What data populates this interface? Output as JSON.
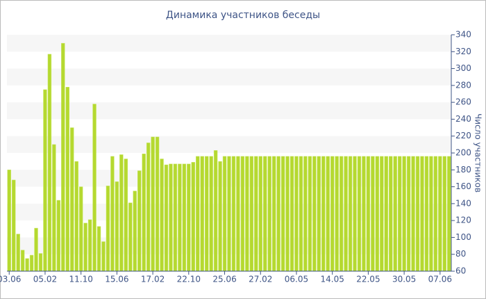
{
  "chart_data": {
    "type": "bar",
    "title": "Динамика участников беседы",
    "y_label": "Число участников",
    "categories": [
      "03.06",
      null,
      null,
      null,
      null,
      null,
      null,
      null,
      "05.02",
      null,
      null,
      null,
      null,
      null,
      null,
      null,
      "11.10",
      null,
      null,
      null,
      null,
      null,
      null,
      null,
      "15.06",
      null,
      null,
      null,
      null,
      null,
      null,
      null,
      "17.02",
      null,
      null,
      null,
      null,
      null,
      null,
      null,
      "22.10",
      null,
      null,
      null,
      null,
      null,
      null,
      null,
      "25.06",
      null,
      null,
      null,
      null,
      null,
      null,
      null,
      "27.02",
      null,
      null,
      null,
      null,
      null,
      null,
      null,
      "06.05",
      null,
      null,
      null,
      null,
      null,
      null,
      null,
      "14.05",
      null,
      null,
      null,
      null,
      null,
      null,
      null,
      "22.05",
      null,
      null,
      null,
      null,
      null,
      null,
      null,
      "30.05",
      null,
      null,
      null,
      null,
      null,
      null,
      null,
      "07.06",
      null,
      null
    ],
    "values": [
      180,
      168,
      104,
      85,
      75,
      79,
      111,
      81,
      275,
      317,
      210,
      144,
      330,
      278,
      230,
      190,
      160,
      117,
      121,
      258,
      113,
      95,
      161,
      196,
      166,
      198,
      193,
      141,
      155,
      179,
      199,
      212,
      219,
      219,
      193,
      186,
      187,
      187,
      187,
      187,
      187,
      189,
      196,
      196,
      196,
      196,
      203,
      190,
      196,
      196,
      196,
      196,
      196,
      196,
      196,
      196,
      196,
      196,
      196,
      196,
      196,
      196,
      196,
      196,
      196,
      196,
      196,
      196,
      196,
      196,
      196,
      196,
      196,
      196,
      196,
      196,
      196,
      196,
      196,
      196,
      196,
      196,
      196,
      196,
      196,
      196,
      196,
      196,
      196,
      196,
      196,
      196,
      196,
      196,
      196,
      196,
      196,
      196,
      196
    ],
    "color": "#b5d930",
    "ylim": [
      60,
      340
    ],
    "yticks": [
      60,
      80,
      100,
      120,
      140,
      160,
      180,
      200,
      220,
      240,
      260,
      280,
      300,
      320,
      340
    ],
    "grid": true
  }
}
